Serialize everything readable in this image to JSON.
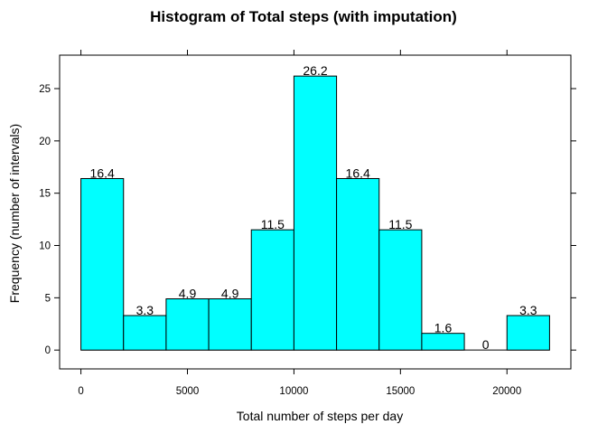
{
  "chart_data": {
    "type": "bar",
    "title": "Histogram of Total steps (with imputation)",
    "xlabel": "Total number of steps per day",
    "ylabel": "Frequency (number of intervals)",
    "bar_color": "#00ffff",
    "bar_border_color": "#000000",
    "bin_edges": [
      0,
      2000,
      4000,
      6000,
      8000,
      10000,
      12000,
      14000,
      16000,
      18000,
      20000,
      22000
    ],
    "values": [
      16.4,
      3.3,
      4.9,
      4.9,
      11.5,
      26.2,
      16.4,
      11.5,
      1.6,
      0,
      3.3
    ],
    "value_labels": [
      "16.4",
      "3.3",
      "4.9",
      "4.9",
      "11.5",
      "26.2",
      "16.4",
      "11.5",
      "1.6",
      "0",
      "3.3"
    ],
    "xlim": [
      -1000,
      23000
    ],
    "ylim": [
      -1.8,
      28.2
    ],
    "xticks": [
      0,
      5000,
      10000,
      15000,
      20000
    ],
    "yticks": [
      0,
      5,
      10,
      15,
      20,
      25
    ],
    "grid": false
  }
}
